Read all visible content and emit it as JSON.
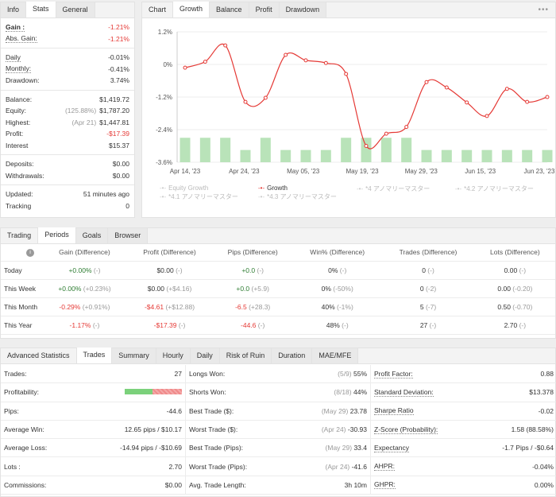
{
  "info_panel": {
    "tabs": [
      "Info",
      "Stats",
      "General"
    ],
    "active_tab": 1,
    "rows_a": [
      {
        "k": "Gain :",
        "v": "-1.21%",
        "cls": "red",
        "dotted": true,
        "bold": true
      },
      {
        "k": "Abs. Gain:",
        "v": "-1.21%",
        "cls": "red",
        "dotted": true
      }
    ],
    "rows_b": [
      {
        "k": "Daily",
        "v": "-0.01%",
        "cls": "",
        "dotted": true
      },
      {
        "k": "Monthly:",
        "v": "-0.41%",
        "cls": "",
        "dotted": true
      },
      {
        "k": "Drawdown:",
        "v": "3.74%",
        "cls": "",
        "dotted": false
      }
    ],
    "rows_c": [
      {
        "k": "Balance:",
        "sub": "",
        "v": "$1,419.72",
        "cls": ""
      },
      {
        "k": "Equity:",
        "sub": "(125.88%)",
        "v": "$1,787.20",
        "cls": ""
      },
      {
        "k": "Highest:",
        "sub": "(Apr 21)",
        "v": "$1,447.81",
        "cls": ""
      },
      {
        "k": "Profit:",
        "sub": "",
        "v": "-$17.39",
        "cls": "red"
      },
      {
        "k": "Interest",
        "sub": "",
        "v": "$15.37",
        "cls": ""
      }
    ],
    "rows_d": [
      {
        "k": "Deposits:",
        "v": "$0.00"
      },
      {
        "k": "Withdrawals:",
        "v": "$0.00"
      }
    ],
    "rows_e": [
      {
        "k": "Updated:",
        "v": "51 minutes ago"
      },
      {
        "k": "Tracking",
        "v": "0"
      }
    ]
  },
  "chart_panel": {
    "tabs": [
      "Chart",
      "Growth",
      "Balance",
      "Profit",
      "Drawdown"
    ],
    "active_tab": 1,
    "menu_icon": "more-dots-icon",
    "legend": [
      {
        "label": "Equity Growth",
        "active": false
      },
      {
        "label": "Growth",
        "active": true
      },
      {
        "label": "*4 アノマリーマスター",
        "active": false
      },
      {
        "label": "*4.2 アノマリーマスター",
        "active": false
      },
      {
        "label": "*4.1 アノマリーマスター",
        "active": false
      },
      {
        "label": "*4.3 アノマリーマスター",
        "active": false
      }
    ]
  },
  "chart_data": {
    "type": "line",
    "title": "",
    "x_tick_labels": [
      "Apr 14, '23",
      "Apr 24, '23",
      "May 05, '23",
      "May 19, '23",
      "May 29, '23",
      "Jun 15, '23",
      "Jun 23, '23"
    ],
    "y_tick_labels": [
      "1.2%",
      "0%",
      "-1.2%",
      "-2.4%",
      "-3.6%"
    ],
    "ylim": [
      -3.6,
      1.2
    ],
    "series": [
      {
        "name": "Growth",
        "color": "#e53935",
        "values": [
          -0.12,
          0.1,
          0.7,
          -1.38,
          -1.23,
          0.35,
          0.15,
          0.05,
          -0.35,
          -3.0,
          -2.55,
          -2.3,
          -0.65,
          -0.85,
          -1.4,
          -1.9,
          -0.9,
          -1.38,
          -1.2
        ]
      },
      {
        "name": "Equity Growth",
        "type": "bar",
        "color": "#b9e3b9",
        "values": [
          -2.7,
          -2.7,
          -2.7,
          -3.15,
          -2.7,
          -3.15,
          -3.15,
          -3.15,
          -2.7,
          -2.7,
          -2.7,
          -2.7,
          -3.15,
          -3.15,
          -3.15,
          -3.15,
          -3.15,
          -3.15,
          -3.15
        ]
      }
    ],
    "grid": true
  },
  "trading_panel": {
    "tabs": [
      "Trading",
      "Periods",
      "Goals",
      "Browser"
    ],
    "active_tab": 1,
    "info_icon": "info-icon",
    "headers": [
      "Gain (Difference)",
      "Profit (Difference)",
      "Pips (Difference)",
      "Win% (Difference)",
      "Trades (Difference)",
      "Lots (Difference)"
    ],
    "rows": [
      {
        "label": "Today",
        "cells": [
          [
            "+0.00%",
            "(-)",
            "green"
          ],
          [
            "$0.00",
            "(-)",
            ""
          ],
          [
            "+0.0",
            "(-)",
            "green"
          ],
          [
            "0%",
            "(-)",
            ""
          ],
          [
            "0",
            "(-)",
            ""
          ],
          [
            "0.00",
            "(-)",
            ""
          ]
        ]
      },
      {
        "label": "This Week",
        "cells": [
          [
            "+0.00%",
            "(+0.23%)",
            "green"
          ],
          [
            "$0.00",
            "(+$4.16)",
            ""
          ],
          [
            "+0.0",
            "(+5.9)",
            "green"
          ],
          [
            "0%",
            "(-50%)",
            ""
          ],
          [
            "0",
            "(-2)",
            ""
          ],
          [
            "0.00",
            "(-0.20)",
            ""
          ]
        ]
      },
      {
        "label": "This Month",
        "cells": [
          [
            "-0.29%",
            "(+0.91%)",
            "red"
          ],
          [
            "-$4.61",
            "(+$12.88)",
            "red"
          ],
          [
            "-6.5",
            "(+28.3)",
            "red"
          ],
          [
            "40%",
            "(-1%)",
            ""
          ],
          [
            "5",
            "(-7)",
            ""
          ],
          [
            "0.50",
            "(-0.70)",
            ""
          ]
        ]
      },
      {
        "label": "This Year",
        "cells": [
          [
            "-1.17%",
            "(-)",
            "red"
          ],
          [
            "-$17.39",
            "(-)",
            "red"
          ],
          [
            "-44.6",
            "(-)",
            "red"
          ],
          [
            "48%",
            "(-)",
            ""
          ],
          [
            "27",
            "(-)",
            ""
          ],
          [
            "2.70",
            "(-)",
            ""
          ]
        ]
      }
    ]
  },
  "advanced_panel": {
    "tabs": [
      "Advanced Statistics",
      "Trades",
      "Summary",
      "Hourly",
      "Daily",
      "Risk of Ruin",
      "Duration",
      "MAE/MFE"
    ],
    "active_tab": 1,
    "rows": [
      [
        {
          "k": "Trades:",
          "sub": "",
          "v": "27"
        },
        {
          "k": "Longs Won:",
          "sub": "(5/9)",
          "v": "55%"
        },
        {
          "k": "Profit Factor:",
          "sub": "",
          "v": "0.88",
          "dotted": true
        }
      ],
      [
        {
          "k": "Profitability:",
          "sub": "",
          "v": "",
          "bar": true
        },
        {
          "k": "Shorts Won:",
          "sub": "(8/18)",
          "v": "44%"
        },
        {
          "k": "Standard Deviation:",
          "sub": "",
          "v": "$13.378",
          "dotted": true
        }
      ],
      [
        {
          "k": "Pips:",
          "sub": "",
          "v": "-44.6"
        },
        {
          "k": "Best Trade ($):",
          "sub": "(May 29)",
          "v": "23.78"
        },
        {
          "k": "Sharpe Ratio",
          "sub": "",
          "v": "-0.02",
          "dotted": true
        }
      ],
      [
        {
          "k": "Average Win:",
          "sub": "",
          "v": "12.65 pips / $10.17"
        },
        {
          "k": "Worst Trade ($):",
          "sub": "(Apr 24)",
          "v": "-30.93"
        },
        {
          "k": "Z-Score (Probability):",
          "sub": "",
          "v": "1.58 (88.58%)",
          "dotted": true
        }
      ],
      [
        {
          "k": "Average Loss:",
          "sub": "",
          "v": "-14.94 pips / -$10.69"
        },
        {
          "k": "Best Trade (Pips):",
          "sub": "(May 29)",
          "v": "33.4"
        },
        {
          "k": "Expectancy",
          "sub": "",
          "v": "-1.7 Pips / -$0.64",
          "dotted": true
        }
      ],
      [
        {
          "k": "Lots :",
          "sub": "",
          "v": "2.70"
        },
        {
          "k": "Worst Trade (Pips):",
          "sub": "(Apr 24)",
          "v": "-41.6"
        },
        {
          "k": "AHPR:",
          "sub": "",
          "v": "-0.04%",
          "dotted": true
        }
      ],
      [
        {
          "k": "Commissions:",
          "sub": "",
          "v": "$0.00"
        },
        {
          "k": "Avg. Trade Length:",
          "sub": "",
          "v": "3h 10m"
        },
        {
          "k": "GHPR:",
          "sub": "",
          "v": "0.00%",
          "dotted": true
        }
      ]
    ],
    "profitability": {
      "won_fraction": 0.48
    }
  }
}
